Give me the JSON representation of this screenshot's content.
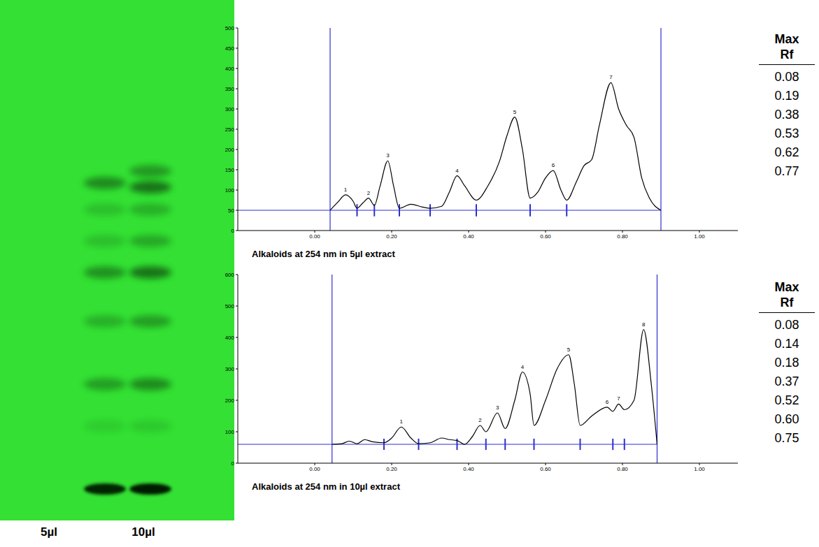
{
  "plate": {
    "lanes": [
      "5µl",
      "10µl"
    ]
  },
  "chart_data": [
    {
      "type": "line",
      "title": "Alkaloids at 254 nm in 5µl extract",
      "x": [
        0.04,
        0.06,
        0.08,
        0.1,
        0.11,
        0.125,
        0.14,
        0.155,
        0.17,
        0.19,
        0.205,
        0.22,
        0.25,
        0.28,
        0.3,
        0.33,
        0.35,
        0.37,
        0.39,
        0.42,
        0.45,
        0.48,
        0.5,
        0.52,
        0.54,
        0.56,
        0.58,
        0.6,
        0.62,
        0.64,
        0.655,
        0.68,
        0.7,
        0.72,
        0.74,
        0.77,
        0.79,
        0.81,
        0.83,
        0.85,
        0.87,
        0.9
      ],
      "values": [
        50,
        70,
        88,
        72,
        55,
        68,
        80,
        62,
        110,
        172,
        110,
        55,
        65,
        58,
        55,
        60,
        95,
        135,
        110,
        75,
        110,
        170,
        235,
        280,
        200,
        80,
        95,
        130,
        148,
        100,
        75,
        120,
        160,
        175,
        260,
        365,
        300,
        260,
        230,
        130,
        80,
        50
      ],
      "color": "#000000",
      "xlim": [
        -0.2,
        1.1
      ],
      "xticks": [
        {
          "value": 0,
          "label": "0.00"
        },
        {
          "value": 0.2,
          "label": "0.20"
        },
        {
          "value": 0.4,
          "label": "0.40"
        },
        {
          "value": 0.6,
          "label": "0.60"
        },
        {
          "value": 0.8,
          "label": "0.80"
        },
        {
          "value": 1,
          "label": "1.00"
        }
      ],
      "ylim": [
        0,
        500
      ],
      "yticks": [
        0,
        50,
        100,
        150,
        200,
        250,
        300,
        350,
        400,
        450,
        500
      ],
      "baseline": 50,
      "track": [
        0.04,
        0.9
      ],
      "peak_bounds": [
        0.11,
        0.155,
        0.22,
        0.3,
        0.42,
        0.56,
        0.655
      ],
      "peaks": [
        {
          "label": "1",
          "x": 0.08,
          "y": 88
        },
        {
          "label": "2",
          "x": 0.14,
          "y": 80
        },
        {
          "label": "3",
          "x": 0.19,
          "y": 172
        },
        {
          "label": "4",
          "x": 0.37,
          "y": 135
        },
        {
          "label": "5",
          "x": 0.52,
          "y": 280
        },
        {
          "label": "6",
          "x": 0.62,
          "y": 148
        },
        {
          "label": "7",
          "x": 0.77,
          "y": 365
        }
      ]
    },
    {
      "type": "line",
      "title": "Alkaloids at 254 nm in 10µl extract",
      "x": [
        0.045,
        0.07,
        0.09,
        0.11,
        0.13,
        0.15,
        0.18,
        0.2,
        0.225,
        0.25,
        0.27,
        0.3,
        0.33,
        0.35,
        0.37,
        0.39,
        0.41,
        0.43,
        0.445,
        0.475,
        0.495,
        0.52,
        0.54,
        0.56,
        0.57,
        0.6,
        0.63,
        0.66,
        0.675,
        0.69,
        0.72,
        0.76,
        0.775,
        0.79,
        0.805,
        0.83,
        0.855,
        0.875,
        0.89
      ],
      "values": [
        60,
        62,
        70,
        62,
        75,
        68,
        65,
        80,
        115,
        80,
        62,
        65,
        80,
        75,
        72,
        60,
        85,
        120,
        100,
        160,
        110,
        200,
        290,
        220,
        120,
        200,
        300,
        345,
        250,
        120,
        150,
        178,
        165,
        188,
        170,
        200,
        425,
        250,
        60
      ],
      "color": "#000000",
      "xlim": [
        -0.2,
        1.1
      ],
      "xticks": [
        {
          "value": 0,
          "label": "0.00"
        },
        {
          "value": 0.2,
          "label": "0.20"
        },
        {
          "value": 0.4,
          "label": "0.40"
        },
        {
          "value": 0.6,
          "label": "0.60"
        },
        {
          "value": 0.8,
          "label": "0.80"
        },
        {
          "value": 1,
          "label": "1.00"
        }
      ],
      "ylim": [
        0,
        600
      ],
      "yticks": [
        0,
        100,
        200,
        300,
        400,
        500,
        600
      ],
      "baseline": 60,
      "track": [
        0.045,
        0.89
      ],
      "peak_bounds": [
        0.18,
        0.27,
        0.37,
        0.445,
        0.495,
        0.57,
        0.69,
        0.775,
        0.805
      ],
      "peaks": [
        {
          "label": "1",
          "x": 0.225,
          "y": 115
        },
        {
          "label": "2",
          "x": 0.43,
          "y": 120
        },
        {
          "label": "3",
          "x": 0.475,
          "y": 160
        },
        {
          "label": "4",
          "x": 0.54,
          "y": 290
        },
        {
          "label": "5",
          "x": 0.66,
          "y": 345
        },
        {
          "label": "6",
          "x": 0.76,
          "y": 178
        },
        {
          "label": "7",
          "x": 0.79,
          "y": 188
        },
        {
          "label": "8",
          "x": 0.855,
          "y": 425
        }
      ]
    }
  ],
  "tables": [
    {
      "header": "Max Rf",
      "rows": [
        "0.08",
        "0.19",
        "0.38",
        "0.53",
        "0.62",
        "0.77"
      ]
    },
    {
      "header": "Max Rf",
      "rows": [
        "0.08",
        "0.14",
        "0.18",
        "0.37",
        "0.52",
        "0.60",
        "0.75"
      ]
    }
  ]
}
